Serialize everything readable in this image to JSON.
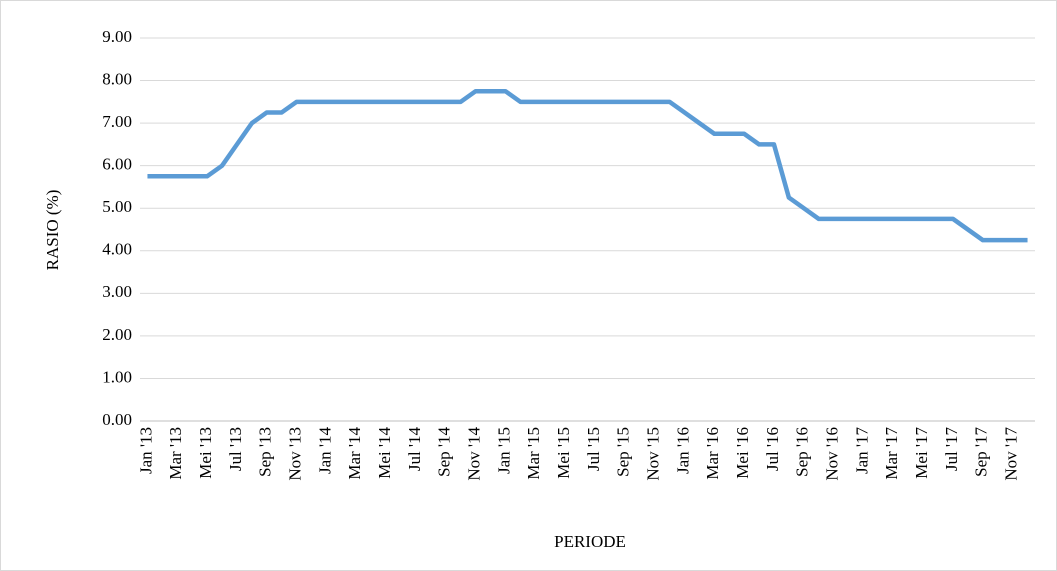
{
  "chart_data": {
    "type": "line",
    "x_label": "PERIODE",
    "y_label": "RASIO (%)",
    "categories": [
      "Jan '13",
      null,
      "Mar '13",
      null,
      "Mei '13",
      null,
      "Jul '13",
      null,
      "Sep '13",
      null,
      "Nov '13",
      null,
      "Jan '14",
      null,
      "Mar '14",
      null,
      "Mei '14",
      null,
      "Jul '14",
      null,
      "Sep '14",
      null,
      "Nov '14",
      null,
      "Jan '15",
      null,
      "Mar '15",
      null,
      "Mei '15",
      null,
      "Jul '15",
      null,
      "Sep '15",
      null,
      "Nov '15",
      null,
      "Jan '16",
      null,
      "Mar '16",
      null,
      "Mei '16",
      null,
      "Jul '16",
      null,
      "Sep '16",
      null,
      "Nov '16",
      null,
      "Jan '17",
      null,
      "Mar '17",
      null,
      "Mei '17",
      null,
      "Jul '17",
      null,
      "Sep '17",
      null,
      "Nov '17",
      null
    ],
    "values": [
      5.75,
      5.75,
      5.75,
      5.75,
      5.75,
      6.0,
      6.5,
      7.0,
      7.25,
      7.25,
      7.5,
      7.5,
      7.5,
      7.5,
      7.5,
      7.5,
      7.5,
      7.5,
      7.5,
      7.5,
      7.5,
      7.5,
      7.75,
      7.75,
      7.75,
      7.5,
      7.5,
      7.5,
      7.5,
      7.5,
      7.5,
      7.5,
      7.5,
      7.5,
      7.5,
      7.5,
      7.25,
      7.0,
      6.75,
      6.75,
      6.75,
      6.5,
      6.5,
      5.25,
      5.0,
      4.75,
      4.75,
      4.75,
      4.75,
      4.75,
      4.75,
      4.75,
      4.75,
      4.75,
      4.75,
      4.5,
      4.25,
      4.25,
      4.25,
      4.25
    ],
    "color": "#5b9bd5",
    "ylim": [
      0,
      9
    ],
    "yticks": [
      {
        "value": 0,
        "label": "0.00"
      },
      {
        "value": 1,
        "label": "1.00"
      },
      {
        "value": 2,
        "label": "2.00"
      },
      {
        "value": 3,
        "label": "3.00"
      },
      {
        "value": 4,
        "label": "4.00"
      },
      {
        "value": 5,
        "label": "5.00"
      },
      {
        "value": 6,
        "label": "6.00"
      },
      {
        "value": 7,
        "label": "7.00"
      },
      {
        "value": 8,
        "label": "8.00"
      },
      {
        "value": 9,
        "label": "9.00"
      }
    ],
    "grid": true
  }
}
